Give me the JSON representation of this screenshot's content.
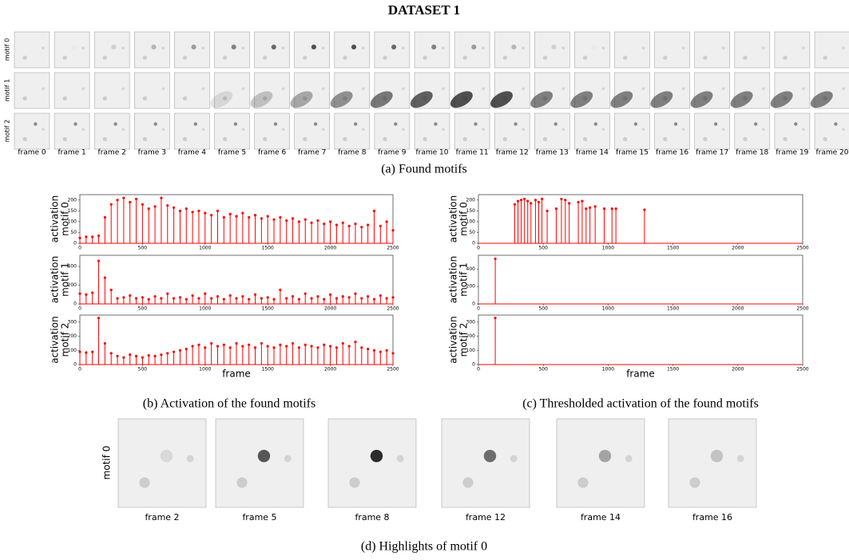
{
  "title": "DATASET 1",
  "panel_a": {
    "row_labels": [
      "motif 0",
      "motif 1",
      "motif 2"
    ],
    "frame_labels": [
      "frame 0",
      "frame 1",
      "frame 2",
      "frame 3",
      "frame 4",
      "frame 5",
      "frame 6",
      "frame 7",
      "frame 8",
      "frame 9",
      "frame 10",
      "frame 11",
      "frame 12",
      "frame 13",
      "frame 14",
      "frame 15",
      "frame 16",
      "frame 17",
      "frame 18",
      "frame 19",
      "frame 20"
    ],
    "caption": "(a) Found motifs"
  },
  "chart_data": [
    {
      "type": "stem",
      "color": "#ff0000",
      "ylabel_lines": [
        "activation",
        "motif 0"
      ],
      "x": [
        0,
        50,
        100,
        150,
        200,
        250,
        300,
        350,
        400,
        450,
        500,
        550,
        600,
        650,
        700,
        750,
        800,
        850,
        900,
        950,
        1000,
        1050,
        1100,
        1150,
        1200,
        1250,
        1300,
        1350,
        1400,
        1450,
        1500,
        1550,
        1600,
        1650,
        1700,
        1750,
        1800,
        1850,
        1900,
        1950,
        2000,
        2050,
        2100,
        2150,
        2200,
        2250,
        2300,
        2350,
        2400,
        2450,
        2500
      ],
      "values": [
        25,
        30,
        30,
        35,
        120,
        180,
        200,
        210,
        190,
        205,
        180,
        160,
        170,
        210,
        175,
        165,
        150,
        160,
        145,
        150,
        140,
        130,
        150,
        120,
        135,
        125,
        140,
        120,
        130,
        115,
        125,
        110,
        120,
        105,
        115,
        100,
        110,
        95,
        105,
        90,
        100,
        85,
        95,
        80,
        90,
        75,
        85,
        150,
        80,
        100,
        60
      ],
      "xlim": [
        0,
        2500
      ],
      "xticks": [
        0,
        500,
        1000,
        1500,
        2000,
        2500
      ],
      "ylim": [
        0,
        225
      ],
      "yticks": [
        0,
        50,
        100,
        150,
        200
      ]
    },
    {
      "type": "stem",
      "color": "#ff0000",
      "ylabel_lines": [
        "activation",
        "motif 1"
      ],
      "x": [
        0,
        50,
        100,
        150,
        200,
        250,
        300,
        350,
        400,
        450,
        500,
        550,
        600,
        650,
        700,
        750,
        800,
        850,
        900,
        950,
        1000,
        1050,
        1100,
        1150,
        1200,
        1250,
        1300,
        1350,
        1400,
        1450,
        1500,
        1550,
        1600,
        1650,
        1700,
        1750,
        1800,
        1850,
        1900,
        1950,
        2000,
        2050,
        2100,
        2150,
        2200,
        2250,
        2300,
        2350,
        2400,
        2450,
        2500
      ],
      "values": [
        110,
        100,
        120,
        460,
        280,
        150,
        60,
        70,
        90,
        60,
        70,
        50,
        80,
        60,
        110,
        60,
        70,
        50,
        90,
        60,
        110,
        60,
        80,
        50,
        90,
        60,
        80,
        50,
        100,
        60,
        70,
        50,
        150,
        60,
        80,
        50,
        110,
        60,
        80,
        50,
        100,
        60,
        80,
        70,
        110,
        60,
        80,
        50,
        90,
        60,
        70
      ],
      "xlim": [
        0,
        2500
      ],
      "xticks": [
        0,
        500,
        1000,
        1500,
        2000,
        2500
      ],
      "ylim": [
        0,
        520
      ],
      "yticks": [
        0,
        200,
        400
      ]
    },
    {
      "type": "stem",
      "color": "#ff0000",
      "ylabel_lines": [
        "activation",
        "motif 2"
      ],
      "xlabel": "frame",
      "x": [
        0,
        50,
        100,
        150,
        200,
        250,
        300,
        350,
        400,
        450,
        500,
        550,
        600,
        650,
        700,
        750,
        800,
        850,
        900,
        950,
        1000,
        1050,
        1100,
        1150,
        1200,
        1250,
        1300,
        1350,
        1400,
        1450,
        1500,
        1550,
        1600,
        1650,
        1700,
        1750,
        1800,
        1850,
        1900,
        1950,
        2000,
        2050,
        2100,
        2150,
        2200,
        2250,
        2300,
        2350,
        2400,
        2450,
        2500
      ],
      "values": [
        90,
        85,
        90,
        330,
        150,
        80,
        60,
        50,
        70,
        60,
        50,
        65,
        60,
        70,
        80,
        90,
        100,
        110,
        130,
        140,
        120,
        150,
        130,
        140,
        120,
        150,
        130,
        140,
        120,
        150,
        130,
        120,
        140,
        130,
        150,
        120,
        140,
        130,
        120,
        140,
        130,
        120,
        150,
        130,
        160,
        120,
        110,
        100,
        90,
        100,
        80
      ],
      "xlim": [
        0,
        2500
      ],
      "xticks": [
        0,
        500,
        1000,
        1500,
        2000,
        2500
      ],
      "ylim": [
        0,
        350
      ],
      "yticks": [
        0,
        100,
        200,
        300
      ]
    },
    {
      "type": "stem",
      "color": "#ff0000",
      "ylabel_lines": [
        "activation",
        "motif 0"
      ],
      "x": [
        280,
        305,
        330,
        355,
        380,
        405,
        440,
        465,
        490,
        530,
        600,
        640,
        670,
        700,
        770,
        800,
        830,
        860,
        900,
        970,
        1030,
        1060,
        1280
      ],
      "values": [
        180,
        195,
        200,
        205,
        195,
        185,
        200,
        190,
        205,
        150,
        160,
        205,
        200,
        185,
        190,
        195,
        160,
        165,
        170,
        160,
        160,
        160,
        155
      ],
      "xlim": [
        0,
        2500
      ],
      "xticks": [
        0,
        500,
        1000,
        1500,
        2000,
        2500
      ],
      "ylim": [
        0,
        225
      ],
      "yticks": [
        0,
        50,
        100,
        150,
        200
      ]
    },
    {
      "type": "stem",
      "color": "#ff0000",
      "ylabel_lines": [
        "activation",
        "motif 1"
      ],
      "x": [
        130
      ],
      "values": [
        520
      ],
      "xlim": [
        0,
        2500
      ],
      "xticks": [
        0,
        500,
        1000,
        1500,
        2000,
        2500
      ],
      "ylim": [
        0,
        560
      ],
      "yticks": [
        0,
        200,
        400
      ]
    },
    {
      "type": "stem",
      "color": "#ff0000",
      "ylabel_lines": [
        "activation",
        "motif 2"
      ],
      "xlabel": "frame",
      "x": [
        130
      ],
      "values": [
        330
      ],
      "xlim": [
        0,
        2500
      ],
      "xticks": [
        0,
        500,
        1000,
        1500,
        2000,
        2500
      ],
      "ylim": [
        0,
        350
      ],
      "yticks": [
        0,
        100,
        200,
        300
      ]
    }
  ],
  "caption_b": "(b) Activation of the found motifs",
  "caption_c": "(c) Thresholded activation of the found motifs",
  "panel_d": {
    "ylabel": "motif 0",
    "frame_labels": [
      "frame 2",
      "frame 5",
      "frame 8",
      "frame 12",
      "frame 14",
      "frame 16"
    ],
    "caption": "(d) Highlights of motif 0"
  }
}
